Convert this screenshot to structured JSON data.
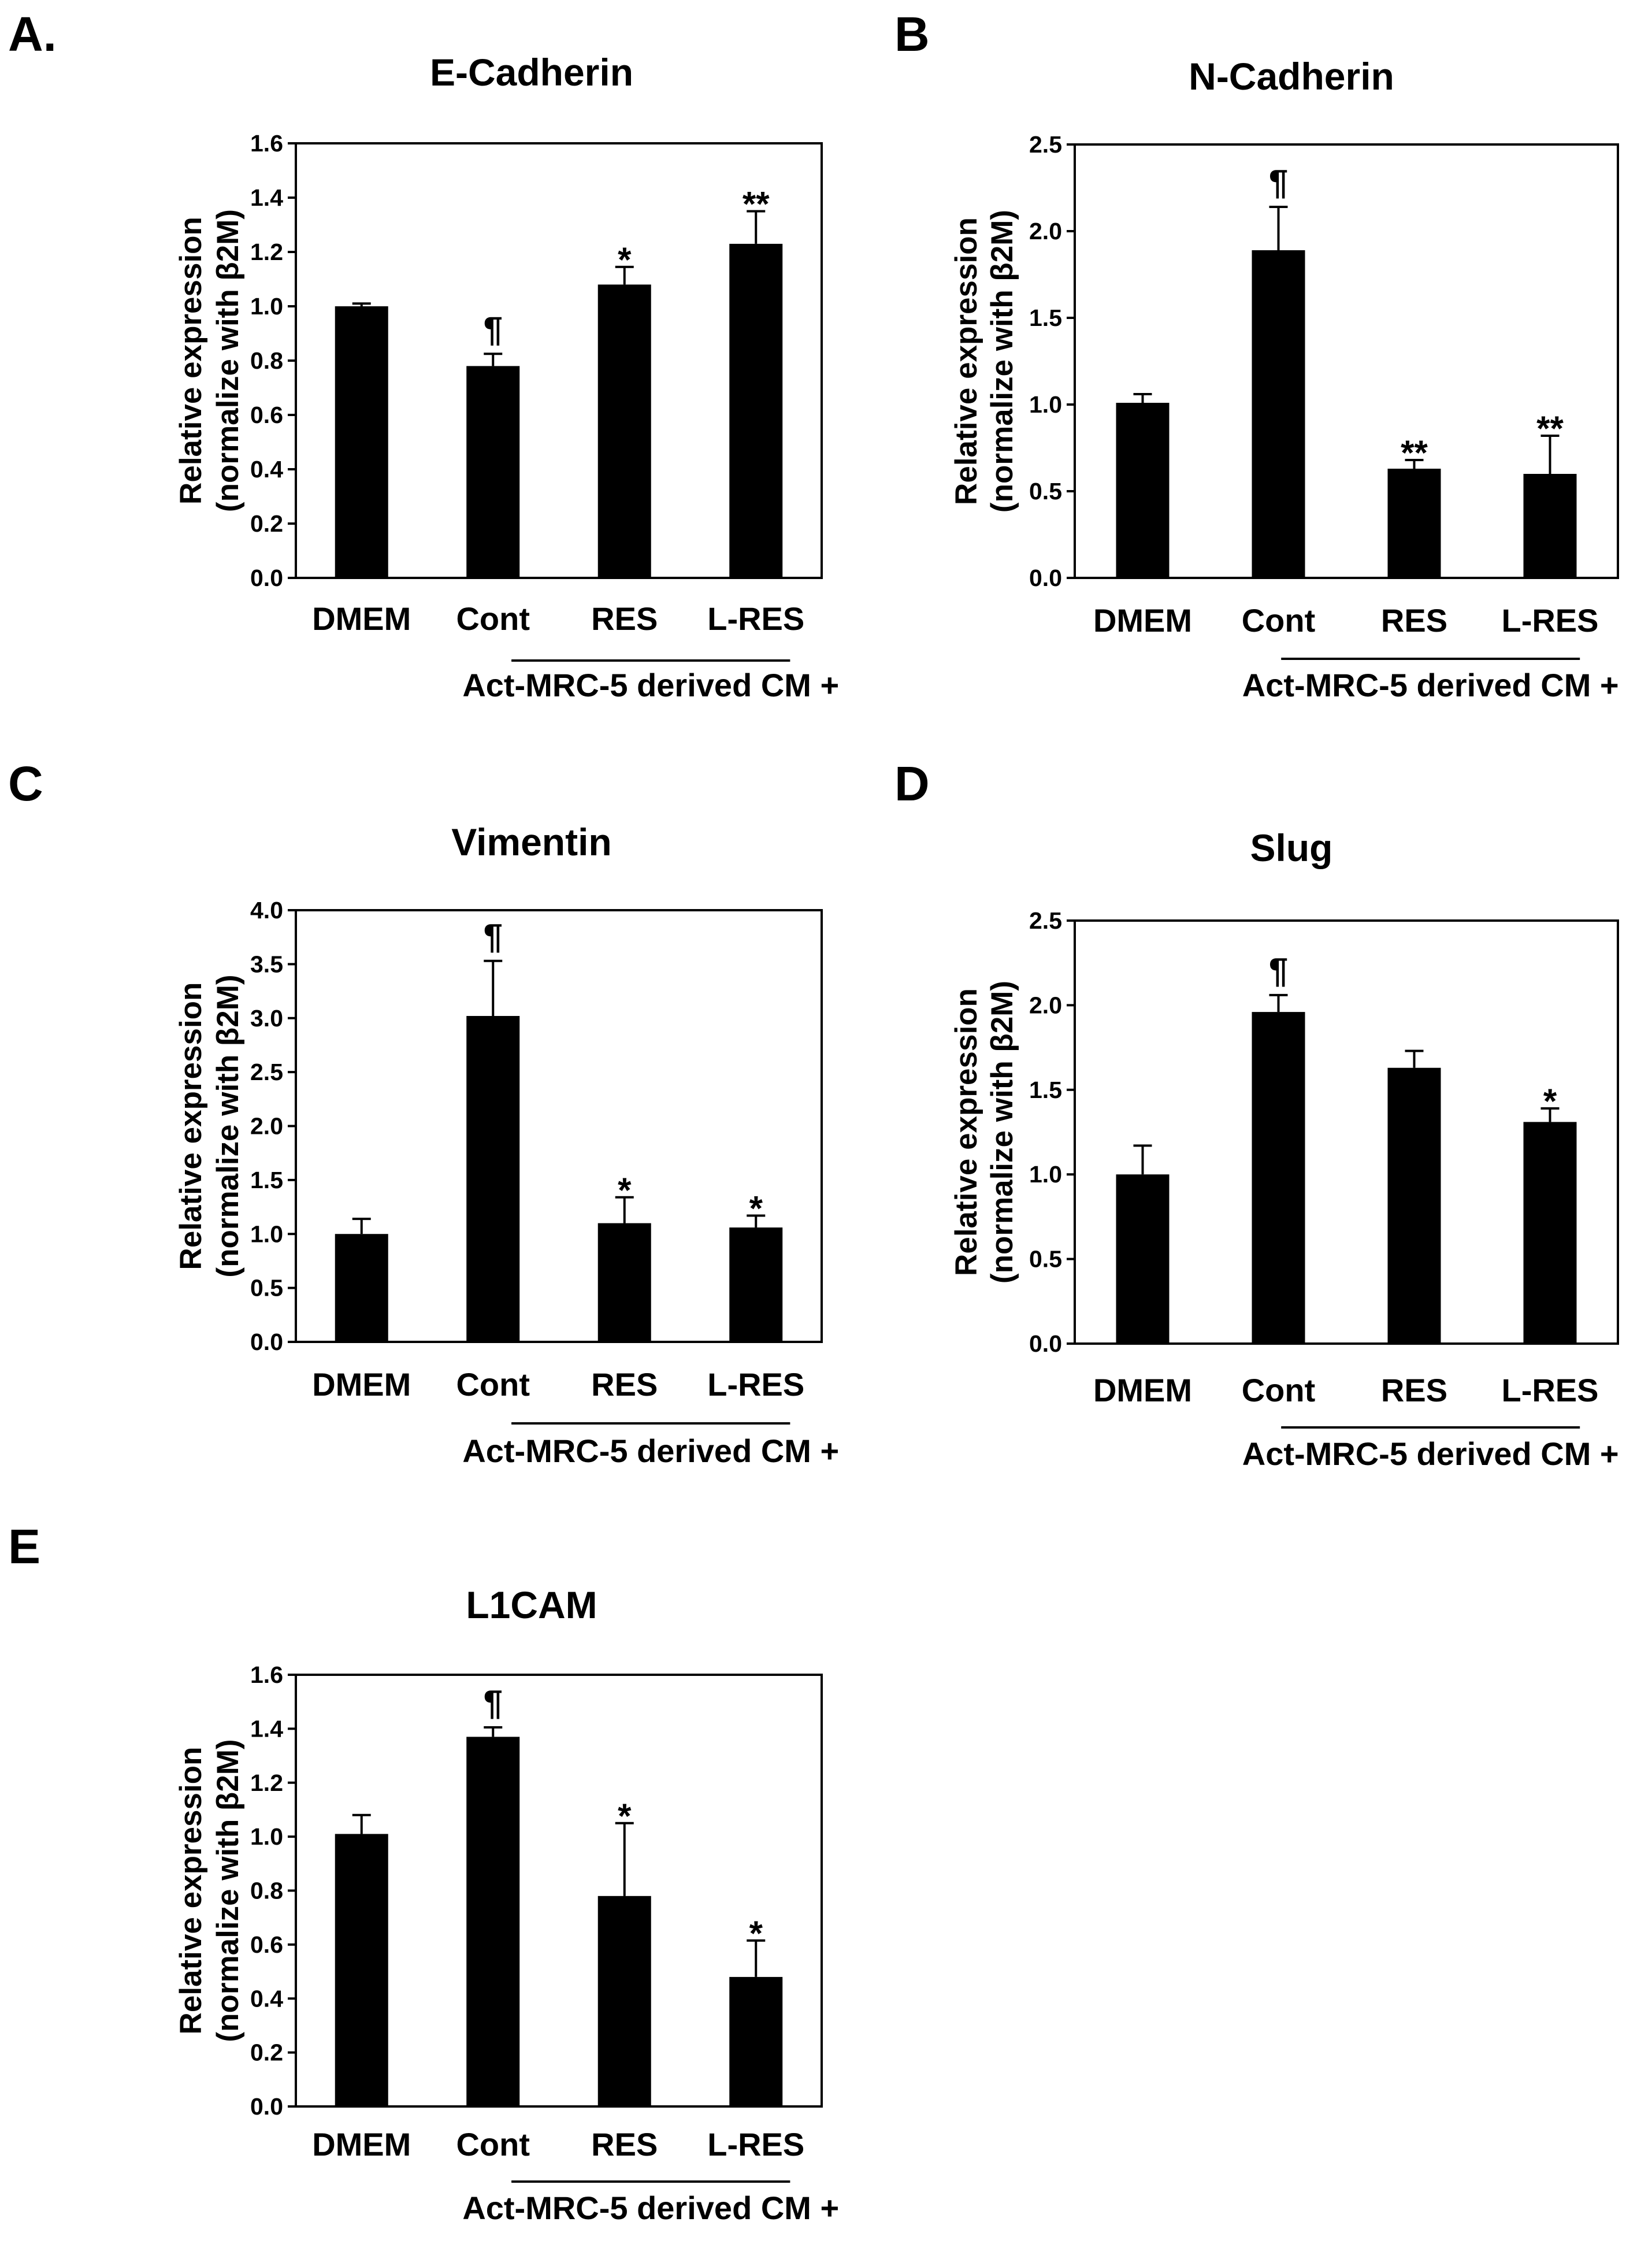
{
  "figure": {
    "group_label": "Act-MRC-5 derived CM +",
    "ylabel_line1": "Relative expression",
    "ylabel_line2": "(normalize with  β2M)"
  },
  "chart_data": [
    {
      "panel": "A.",
      "type": "bar",
      "title": "E-Cadherin",
      "categories": [
        "DMEM",
        "Cont",
        "RES",
        "L-RES"
      ],
      "values": [
        1.0,
        0.78,
        1.08,
        1.23
      ],
      "errors": [
        0.01,
        0.045,
        0.065,
        0.12
      ],
      "annotations": [
        "",
        "¶",
        "*",
        "**"
      ],
      "ylim": [
        0,
        1.6
      ],
      "yticks": [
        "0.0",
        "0.2",
        "0.4",
        "0.6",
        "0.8",
        "1.0",
        "1.2",
        "1.4",
        "1.6"
      ],
      "ylabel": "Relative expression (normalize with  β2M)"
    },
    {
      "panel": "B",
      "type": "bar",
      "title": "N-Cadherin",
      "categories": [
        "DMEM",
        "Cont",
        "RES",
        "L-RES"
      ],
      "values": [
        1.01,
        1.89,
        0.63,
        0.6
      ],
      "errors": [
        0.05,
        0.25,
        0.05,
        0.22
      ],
      "annotations": [
        "",
        "¶",
        "**",
        "**"
      ],
      "ylim": [
        0,
        2.5
      ],
      "yticks": [
        "0.0",
        "0.5",
        "1.0",
        "1.5",
        "2.0",
        "2.5"
      ],
      "ylabel": "Relative expression (normalize with  β2M)"
    },
    {
      "panel": "C",
      "type": "bar",
      "title": "Vimentin",
      "categories": [
        "DMEM",
        "Cont",
        "RES",
        "L-RES"
      ],
      "values": [
        1.0,
        3.02,
        1.1,
        1.06
      ],
      "errors": [
        0.14,
        0.51,
        0.24,
        0.11
      ],
      "annotations": [
        "",
        "¶",
        "*",
        "*"
      ],
      "ylim": [
        0,
        4.0
      ],
      "yticks": [
        "0.0",
        "0.5",
        "1.0",
        "1.5",
        "2.0",
        "2.5",
        "3.0",
        "3.5",
        "4.0"
      ],
      "ylabel": "Relative expression (normalize with  β2M)"
    },
    {
      "panel": "D",
      "type": "bar",
      "title": "Slug",
      "categories": [
        "DMEM",
        "Cont",
        "RES",
        "L-RES"
      ],
      "values": [
        1.0,
        1.96,
        1.63,
        1.31
      ],
      "errors": [
        0.17,
        0.1,
        0.1,
        0.08
      ],
      "annotations": [
        "",
        "¶",
        "",
        "*"
      ],
      "ylim": [
        0,
        2.5
      ],
      "yticks": [
        "0.0",
        "0.5",
        "1.0",
        "1.5",
        "2.0",
        "2.5"
      ],
      "ylabel": "Relative expression (normalize with  β2M)"
    },
    {
      "panel": "E",
      "type": "bar",
      "title": "L1CAM",
      "categories": [
        "DMEM",
        "Cont",
        "RES",
        "L-RES"
      ],
      "values": [
        1.01,
        1.37,
        0.78,
        0.48
      ],
      "errors": [
        0.07,
        0.035,
        0.27,
        0.135
      ],
      "annotations": [
        "",
        "¶",
        "*",
        "*"
      ],
      "ylim": [
        0,
        1.6
      ],
      "yticks": [
        "0.0",
        "0.2",
        "0.4",
        "0.6",
        "0.8",
        "1.0",
        "1.2",
        "1.4",
        "1.6"
      ],
      "ylabel": "Relative expression (normalize with  β2M)"
    }
  ]
}
